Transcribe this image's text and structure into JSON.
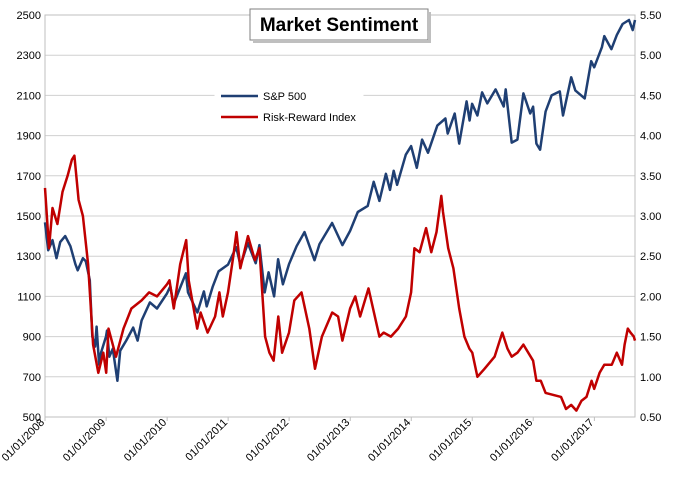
{
  "chart_data": {
    "type": "line",
    "title": "Market Sentiment",
    "legend_position": "top-center",
    "grid": true,
    "x_ticks": [
      "01/01/2008",
      "01/01/2009",
      "01/01/2010",
      "01/01/2011",
      "01/01/2012",
      "01/01/2013",
      "01/01/2014",
      "01/01/2015",
      "01/01/2016",
      "01/01/2017"
    ],
    "x_range": [
      "2008-01-01",
      "2017-09-01"
    ],
    "y_left": {
      "range": [
        500,
        2500
      ],
      "ticks": [
        "2500",
        "2300",
        "2100",
        "1900",
        "1700",
        "1500",
        "1300",
        "1100",
        "900",
        "700",
        "500"
      ]
    },
    "y_right": {
      "range": [
        0.5,
        5.5
      ],
      "ticks": [
        "5.50",
        "5.00",
        "4.50",
        "4.00",
        "3.50",
        "3.00",
        "2.50",
        "2.00",
        "1.50",
        "1.00",
        "0.50"
      ]
    },
    "series": [
      {
        "name": "S&P 500",
        "axis": "left",
        "color": "#1f3f73",
        "points": [
          [
            "2008-01-01",
            1468
          ],
          [
            "2008-01-20",
            1330
          ],
          [
            "2008-02-15",
            1380
          ],
          [
            "2008-03-10",
            1290
          ],
          [
            "2008-04-01",
            1370
          ],
          [
            "2008-05-01",
            1400
          ],
          [
            "2008-06-01",
            1350
          ],
          [
            "2008-07-01",
            1260
          ],
          [
            "2008-07-15",
            1230
          ],
          [
            "2008-08-15",
            1290
          ],
          [
            "2008-09-01",
            1275
          ],
          [
            "2008-09-25",
            1180
          ],
          [
            "2008-10-10",
            900
          ],
          [
            "2008-10-27",
            850
          ],
          [
            "2008-11-05",
            950
          ],
          [
            "2008-11-20",
            760
          ],
          [
            "2008-12-01",
            820
          ],
          [
            "2008-12-31",
            900
          ],
          [
            "2009-01-06",
            930
          ],
          [
            "2009-01-20",
            800
          ],
          [
            "2009-02-10",
            840
          ],
          [
            "2009-03-09",
            680
          ],
          [
            "2009-03-26",
            830
          ],
          [
            "2009-05-01",
            880
          ],
          [
            "2009-06-12",
            945
          ],
          [
            "2009-07-08",
            880
          ],
          [
            "2009-08-01",
            980
          ],
          [
            "2009-09-20",
            1070
          ],
          [
            "2009-11-01",
            1040
          ],
          [
            "2009-12-31",
            1115
          ],
          [
            "2010-01-20",
            1150
          ],
          [
            "2010-02-08",
            1060
          ],
          [
            "2010-04-23",
            1215
          ],
          [
            "2010-05-06",
            1120
          ],
          [
            "2010-07-01",
            1020
          ],
          [
            "2010-08-09",
            1125
          ],
          [
            "2010-08-26",
            1050
          ],
          [
            "2010-10-01",
            1150
          ],
          [
            "2010-11-05",
            1225
          ],
          [
            "2010-12-31",
            1258
          ],
          [
            "2011-02-18",
            1345
          ],
          [
            "2011-03-16",
            1255
          ],
          [
            "2011-04-29",
            1365
          ],
          [
            "2011-06-15",
            1265
          ],
          [
            "2011-07-07",
            1355
          ],
          [
            "2011-08-08",
            1120
          ],
          [
            "2011-08-31",
            1220
          ],
          [
            "2011-10-03",
            1100
          ],
          [
            "2011-10-27",
            1285
          ],
          [
            "2011-11-25",
            1160
          ],
          [
            "2011-12-31",
            1260
          ],
          [
            "2012-02-15",
            1350
          ],
          [
            "2012-04-02",
            1420
          ],
          [
            "2012-06-01",
            1280
          ],
          [
            "2012-07-01",
            1360
          ],
          [
            "2012-09-14",
            1465
          ],
          [
            "2012-11-15",
            1355
          ],
          [
            "2012-12-31",
            1426
          ],
          [
            "2013-02-15",
            1520
          ],
          [
            "2013-04-15",
            1550
          ],
          [
            "2013-05-21",
            1670
          ],
          [
            "2013-06-24",
            1575
          ],
          [
            "2013-08-02",
            1710
          ],
          [
            "2013-08-27",
            1630
          ],
          [
            "2013-09-18",
            1725
          ],
          [
            "2013-10-08",
            1655
          ],
          [
            "2013-11-29",
            1805
          ],
          [
            "2013-12-31",
            1848
          ],
          [
            "2014-02-03",
            1740
          ],
          [
            "2014-03-07",
            1880
          ],
          [
            "2014-04-11",
            1815
          ],
          [
            "2014-06-06",
            1950
          ],
          [
            "2014-07-24",
            1985
          ],
          [
            "2014-08-07",
            1910
          ],
          [
            "2014-09-18",
            2010
          ],
          [
            "2014-10-15",
            1860
          ],
          [
            "2014-11-28",
            2070
          ],
          [
            "2014-12-16",
            1975
          ],
          [
            "2014-12-31",
            2058
          ],
          [
            "2015-02-01",
            2000
          ],
          [
            "2015-03-01",
            2115
          ],
          [
            "2015-04-01",
            2060
          ],
          [
            "2015-05-21",
            2130
          ],
          [
            "2015-07-08",
            2045
          ],
          [
            "2015-07-20",
            2130
          ],
          [
            "2015-08-25",
            1865
          ],
          [
            "2015-09-28",
            1880
          ],
          [
            "2015-11-03",
            2110
          ],
          [
            "2015-12-14",
            2010
          ],
          [
            "2015-12-31",
            2044
          ],
          [
            "2016-01-20",
            1860
          ],
          [
            "2016-02-11",
            1830
          ],
          [
            "2016-03-15",
            2020
          ],
          [
            "2016-04-20",
            2100
          ],
          [
            "2016-06-08",
            2120
          ],
          [
            "2016-06-27",
            2000
          ],
          [
            "2016-08-15",
            2190
          ],
          [
            "2016-09-09",
            2125
          ],
          [
            "2016-11-04",
            2085
          ],
          [
            "2016-12-13",
            2270
          ],
          [
            "2016-12-31",
            2240
          ],
          [
            "2017-02-15",
            2340
          ],
          [
            "2017-03-01",
            2395
          ],
          [
            "2017-04-13",
            2330
          ],
          [
            "2017-05-15",
            2400
          ],
          [
            "2017-06-19",
            2455
          ],
          [
            "2017-07-27",
            2475
          ],
          [
            "2017-08-18",
            2425
          ],
          [
            "2017-09-01",
            2475
          ]
        ]
      },
      {
        "name": "Risk-Reward Index",
        "axis": "right",
        "color": "#c00000",
        "points": [
          [
            "2008-01-01",
            3.35
          ],
          [
            "2008-01-25",
            2.6
          ],
          [
            "2008-02-15",
            3.1
          ],
          [
            "2008-03-15",
            2.9
          ],
          [
            "2008-04-15",
            3.3
          ],
          [
            "2008-05-15",
            3.5
          ],
          [
            "2008-06-10",
            3.7
          ],
          [
            "2008-06-25",
            3.75
          ],
          [
            "2008-07-20",
            3.2
          ],
          [
            "2008-08-15",
            3.0
          ],
          [
            "2008-09-15",
            2.4
          ],
          [
            "2008-10-15",
            1.4
          ],
          [
            "2008-11-15",
            1.05
          ],
          [
            "2008-12-15",
            1.3
          ],
          [
            "2009-01-01",
            1.05
          ],
          [
            "2009-01-15",
            1.6
          ],
          [
            "2009-03-01",
            1.25
          ],
          [
            "2009-04-15",
            1.6
          ],
          [
            "2009-06-01",
            1.85
          ],
          [
            "2009-08-01",
            1.95
          ],
          [
            "2009-09-15",
            2.05
          ],
          [
            "2009-11-01",
            2.0
          ],
          [
            "2009-12-31",
            2.15
          ],
          [
            "2010-01-15",
            2.2
          ],
          [
            "2010-02-10",
            1.85
          ],
          [
            "2010-03-20",
            2.4
          ],
          [
            "2010-04-25",
            2.7
          ],
          [
            "2010-05-10",
            2.2
          ],
          [
            "2010-06-30",
            1.6
          ],
          [
            "2010-07-20",
            1.8
          ],
          [
            "2010-08-31",
            1.55
          ],
          [
            "2010-10-15",
            1.75
          ],
          [
            "2010-11-10",
            2.05
          ],
          [
            "2010-11-30",
            1.75
          ],
          [
            "2010-12-31",
            2.05
          ],
          [
            "2011-02-01",
            2.5
          ],
          [
            "2011-02-20",
            2.8
          ],
          [
            "2011-03-15",
            2.35
          ],
          [
            "2011-04-30",
            2.75
          ],
          [
            "2011-06-10",
            2.45
          ],
          [
            "2011-07-07",
            2.6
          ],
          [
            "2011-08-10",
            1.5
          ],
          [
            "2011-09-05",
            1.3
          ],
          [
            "2011-09-30",
            1.2
          ],
          [
            "2011-10-28",
            1.75
          ],
          [
            "2011-11-20",
            1.3
          ],
          [
            "2011-12-31",
            1.55
          ],
          [
            "2012-02-01",
            1.95
          ],
          [
            "2012-03-15",
            2.05
          ],
          [
            "2012-05-01",
            1.6
          ],
          [
            "2012-06-04",
            1.1
          ],
          [
            "2012-07-15",
            1.5
          ],
          [
            "2012-09-15",
            1.8
          ],
          [
            "2012-10-20",
            1.75
          ],
          [
            "2012-11-15",
            1.45
          ],
          [
            "2012-12-31",
            1.85
          ],
          [
            "2013-01-31",
            2.0
          ],
          [
            "2013-03-01",
            1.75
          ],
          [
            "2013-04-20",
            2.1
          ],
          [
            "2013-06-24",
            1.5
          ],
          [
            "2013-07-20",
            1.55
          ],
          [
            "2013-09-01",
            1.5
          ],
          [
            "2013-10-15",
            1.6
          ],
          [
            "2013-11-30",
            1.75
          ],
          [
            "2013-12-31",
            2.05
          ],
          [
            "2014-01-20",
            2.6
          ],
          [
            "2014-02-20",
            2.55
          ],
          [
            "2014-03-31",
            2.85
          ],
          [
            "2014-05-01",
            2.55
          ],
          [
            "2014-06-01",
            2.8
          ],
          [
            "2014-06-30",
            3.25
          ],
          [
            "2014-07-10",
            3.05
          ],
          [
            "2014-08-10",
            2.6
          ],
          [
            "2014-09-10",
            2.35
          ],
          [
            "2014-10-15",
            1.85
          ],
          [
            "2014-11-15",
            1.5
          ],
          [
            "2014-12-15",
            1.35
          ],
          [
            "2015-01-01",
            1.3
          ],
          [
            "2015-02-01",
            1.0
          ],
          [
            "2015-03-15",
            1.1
          ],
          [
            "2015-05-15",
            1.25
          ],
          [
            "2015-06-30",
            1.55
          ],
          [
            "2015-07-31",
            1.35
          ],
          [
            "2015-08-25",
            1.25
          ],
          [
            "2015-09-28",
            1.3
          ],
          [
            "2015-11-03",
            1.4
          ],
          [
            "2015-12-31",
            1.2
          ],
          [
            "2016-01-20",
            0.95
          ],
          [
            "2016-02-15",
            0.95
          ],
          [
            "2016-03-15",
            0.8
          ],
          [
            "2016-06-15",
            0.75
          ],
          [
            "2016-07-15",
            0.6
          ],
          [
            "2016-08-15",
            0.65
          ],
          [
            "2016-09-15",
            0.58
          ],
          [
            "2016-10-15",
            0.7
          ],
          [
            "2016-11-15",
            0.75
          ],
          [
            "2016-12-15",
            0.95
          ],
          [
            "2016-12-31",
            0.85
          ],
          [
            "2017-02-01",
            1.05
          ],
          [
            "2017-03-01",
            1.15
          ],
          [
            "2017-04-15",
            1.15
          ],
          [
            "2017-05-15",
            1.3
          ],
          [
            "2017-06-15",
            1.15
          ],
          [
            "2017-07-01",
            1.4
          ],
          [
            "2017-07-20",
            1.6
          ],
          [
            "2017-08-05",
            1.55
          ],
          [
            "2017-08-25",
            1.5
          ],
          [
            "2017-09-01",
            1.45
          ]
        ]
      }
    ]
  }
}
